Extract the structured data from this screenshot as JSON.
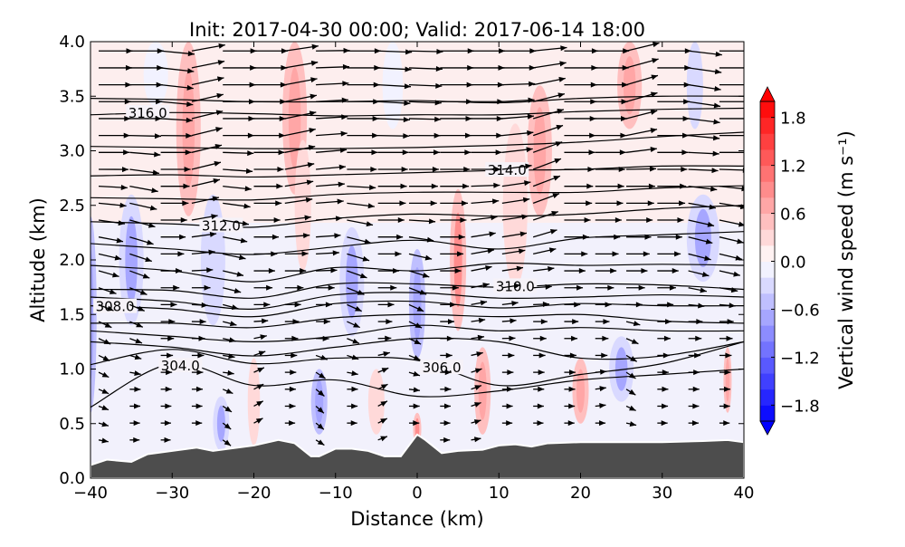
{
  "chart_data": {
    "type": "heatmap",
    "title": "Init: 2017-04-30 00:00; Valid: 2017-06-14 18:00",
    "xlabel": "Distance (km)",
    "ylabel": "Altitude (km)",
    "xlim": [
      -40,
      40
    ],
    "ylim": [
      0,
      4
    ],
    "xticks": [
      -40,
      -30,
      -20,
      -10,
      0,
      10,
      20,
      30,
      40
    ],
    "xtick_labels": [
      "−40",
      "−30",
      "−20",
      "−10",
      "0",
      "10",
      "20",
      "30",
      "40"
    ],
    "yticks": [
      0,
      0.5,
      1,
      1.5,
      2,
      2.5,
      3,
      3.5,
      4
    ],
    "ytick_labels": [
      "0.0",
      "0.5",
      "1.0",
      "1.5",
      "2.0",
      "2.5",
      "3.0",
      "3.5",
      "4.0"
    ],
    "colorbar": {
      "label": "Vertical wind speed (m s⁻¹)",
      "range": [
        -2.0,
        2.0
      ],
      "step": 0.2,
      "extend": "both",
      "ticks": [
        1.8,
        1.2,
        0.6,
        0.0,
        -0.6,
        -1.2,
        -1.8
      ],
      "tick_labels": [
        "1.8",
        "1.2",
        "0.6",
        "0.0",
        "−0.6",
        "−1.2",
        "−1.8"
      ],
      "colormap": "bwr"
    },
    "vertical_wind_cells": [
      {
        "x": -28,
        "z": 3.2,
        "dx": 3,
        "dz": 1.6,
        "w": 0.4
      },
      {
        "x": -15,
        "z": 3.3,
        "dx": 3,
        "dz": 1.4,
        "w": 0.4
      },
      {
        "x": -14,
        "z": 2.5,
        "dx": 2,
        "dz": 1.2,
        "w": 0.3
      },
      {
        "x": -3,
        "z": 3.6,
        "dx": 2.5,
        "dz": 0.8,
        "w": -0.2
      },
      {
        "x": -32,
        "z": 3.7,
        "dx": 3,
        "dz": 0.6,
        "w": -0.2
      },
      {
        "x": -35,
        "z": 2.0,
        "dx": 3,
        "dz": 1.2,
        "w": -0.4
      },
      {
        "x": -25,
        "z": 2.0,
        "dx": 3,
        "dz": 1.2,
        "w": -0.3
      },
      {
        "x": -40,
        "z": 1.5,
        "dx": 1.5,
        "dz": 1.8,
        "w": -0.6
      },
      {
        "x": -20,
        "z": 0.7,
        "dx": 1.5,
        "dz": 0.8,
        "w": 0.3
      },
      {
        "x": -8,
        "z": 1.8,
        "dx": 3,
        "dz": 1.0,
        "w": -0.4
      },
      {
        "x": 0,
        "z": 1.6,
        "dx": 2,
        "dz": 1.0,
        "w": -0.5
      },
      {
        "x": 5,
        "z": 2.0,
        "dx": 2,
        "dz": 1.3,
        "w": 0.6
      },
      {
        "x": 15,
        "z": 3.0,
        "dx": 3,
        "dz": 1.2,
        "w": 0.5
      },
      {
        "x": 12,
        "z": 2.5,
        "dx": 3,
        "dz": 1.5,
        "w": 0.3
      },
      {
        "x": 26,
        "z": 3.6,
        "dx": 3,
        "dz": 0.8,
        "w": 0.5
      },
      {
        "x": 34,
        "z": 3.6,
        "dx": 2,
        "dz": 0.8,
        "w": -0.3
      },
      {
        "x": 35,
        "z": 2.2,
        "dx": 4,
        "dz": 0.8,
        "w": -0.4
      },
      {
        "x": 25,
        "z": 1.0,
        "dx": 3,
        "dz": 0.6,
        "w": -0.4
      },
      {
        "x": 20,
        "z": 0.8,
        "dx": 2,
        "dz": 0.6,
        "w": 0.4
      },
      {
        "x": 8,
        "z": 0.8,
        "dx": 2,
        "dz": 0.8,
        "w": 0.4
      },
      {
        "x": -24,
        "z": 0.5,
        "dx": 2,
        "dz": 0.5,
        "w": -0.4
      },
      {
        "x": -12,
        "z": 0.7,
        "dx": 2,
        "dz": 0.6,
        "w": -0.5
      },
      {
        "x": -5,
        "z": 0.7,
        "dx": 2,
        "dz": 0.6,
        "w": 0.3
      },
      {
        "x": 38,
        "z": 0.9,
        "dx": 1,
        "dz": 0.6,
        "w": 0.4
      },
      {
        "x": 0,
        "z": 0.45,
        "dx": 1,
        "dz": 0.3,
        "w": 0.6
      }
    ],
    "theta_contour_x": [
      -40,
      -30,
      -20,
      -10,
      0,
      10,
      20,
      30,
      40
    ],
    "theta_contours": [
      {
        "z": [
          3.48,
          3.47,
          3.45,
          3.45,
          3.46,
          3.44,
          3.48,
          3.5,
          3.5
        ]
      },
      {
        "z": [
          3.33,
          3.35,
          3.34,
          3.32,
          3.33,
          3.33,
          3.36,
          3.38,
          3.39
        ],
        "label": "316.0",
        "label_x": -33
      },
      {
        "z": [
          3.04,
          3.03,
          3.02,
          3.02,
          3.03,
          3.05,
          3.08,
          3.13,
          3.17
        ]
      },
      {
        "z": [
          2.77,
          2.78,
          2.76,
          2.78,
          2.8,
          2.82,
          2.83,
          2.86,
          2.86
        ],
        "label": "314.0",
        "label_x": 11
      },
      {
        "z": [
          2.57,
          2.56,
          2.55,
          2.6,
          2.62,
          2.62,
          2.62,
          2.66,
          2.68
        ]
      },
      {
        "z": [
          2.35,
          2.33,
          2.3,
          2.38,
          2.42,
          2.4,
          2.42,
          2.47,
          2.5
        ],
        "label": "312.0",
        "label_x": -24
      },
      {
        "z": [
          2.15,
          2.1,
          2.05,
          2.12,
          2.18,
          2.1,
          2.2,
          2.23,
          2.26
        ]
      },
      {
        "z": [
          1.95,
          1.9,
          1.8,
          1.93,
          1.9,
          1.97,
          1.95,
          1.96,
          1.95
        ]
      },
      {
        "z": [
          1.73,
          1.72,
          1.65,
          1.78,
          1.78,
          1.75,
          1.78,
          1.77,
          1.73
        ],
        "label": "310.0",
        "label_x": 12
      },
      {
        "z": [
          1.66,
          1.62,
          1.55,
          1.68,
          1.7,
          1.65,
          1.66,
          1.68,
          1.66
        ]
      },
      {
        "z": [
          1.58,
          1.55,
          1.48,
          1.6,
          1.62,
          1.56,
          1.6,
          1.58,
          1.58
        ],
        "label": "308.0",
        "label_x": -37
      },
      {
        "z": [
          1.42,
          1.42,
          1.38,
          1.47,
          1.5,
          1.48,
          1.5,
          1.44,
          1.42
        ]
      },
      {
        "z": [
          1.35,
          1.3,
          1.25,
          1.3,
          1.4,
          1.35,
          1.38,
          1.35,
          1.35
        ]
      },
      {
        "z": [
          1.25,
          1.2,
          1.12,
          1.2,
          1.28,
          1.25,
          1.1,
          1.12,
          1.25
        ]
      },
      {
        "z": [
          1.04,
          1.18,
          1.05,
          1.1,
          1.08,
          0.85,
          0.95,
          1.05,
          1.25
        ],
        "label": "306.0",
        "label_x": 3
      },
      {
        "z": [
          0.65,
          1.05,
          0.85,
          0.9,
          0.75,
          0.8,
          0.9,
          0.95,
          1.0
        ],
        "label": "304.0",
        "label_x": -29
      }
    ],
    "terrain": {
      "x": [
        -40,
        -38,
        -35,
        -33,
        -30,
        -27,
        -25,
        -22,
        -20,
        -17,
        -15,
        -13,
        -12,
        -10,
        -8,
        -6,
        -4,
        -2,
        0,
        1,
        3,
        5,
        8,
        10,
        12,
        14,
        16,
        20,
        25,
        30,
        35,
        38,
        40
      ],
      "z": [
        0.12,
        0.17,
        0.15,
        0.22,
        0.25,
        0.28,
        0.25,
        0.28,
        0.3,
        0.35,
        0.32,
        0.2,
        0.2,
        0.27,
        0.27,
        0.25,
        0.2,
        0.2,
        0.4,
        0.35,
        0.23,
        0.25,
        0.26,
        0.3,
        0.31,
        0.29,
        0.32,
        0.33,
        0.33,
        0.33,
        0.34,
        0.35,
        0.33
      ],
      "color": "#4d4d4d"
    },
    "wind_profile": {
      "z": [
        0.3,
        1.0,
        1.5,
        2.0,
        2.5,
        3.0,
        4.0
      ],
      "u": [
        3,
        3.5,
        4.5,
        7,
        8.5,
        9.5,
        10.5
      ]
    }
  }
}
